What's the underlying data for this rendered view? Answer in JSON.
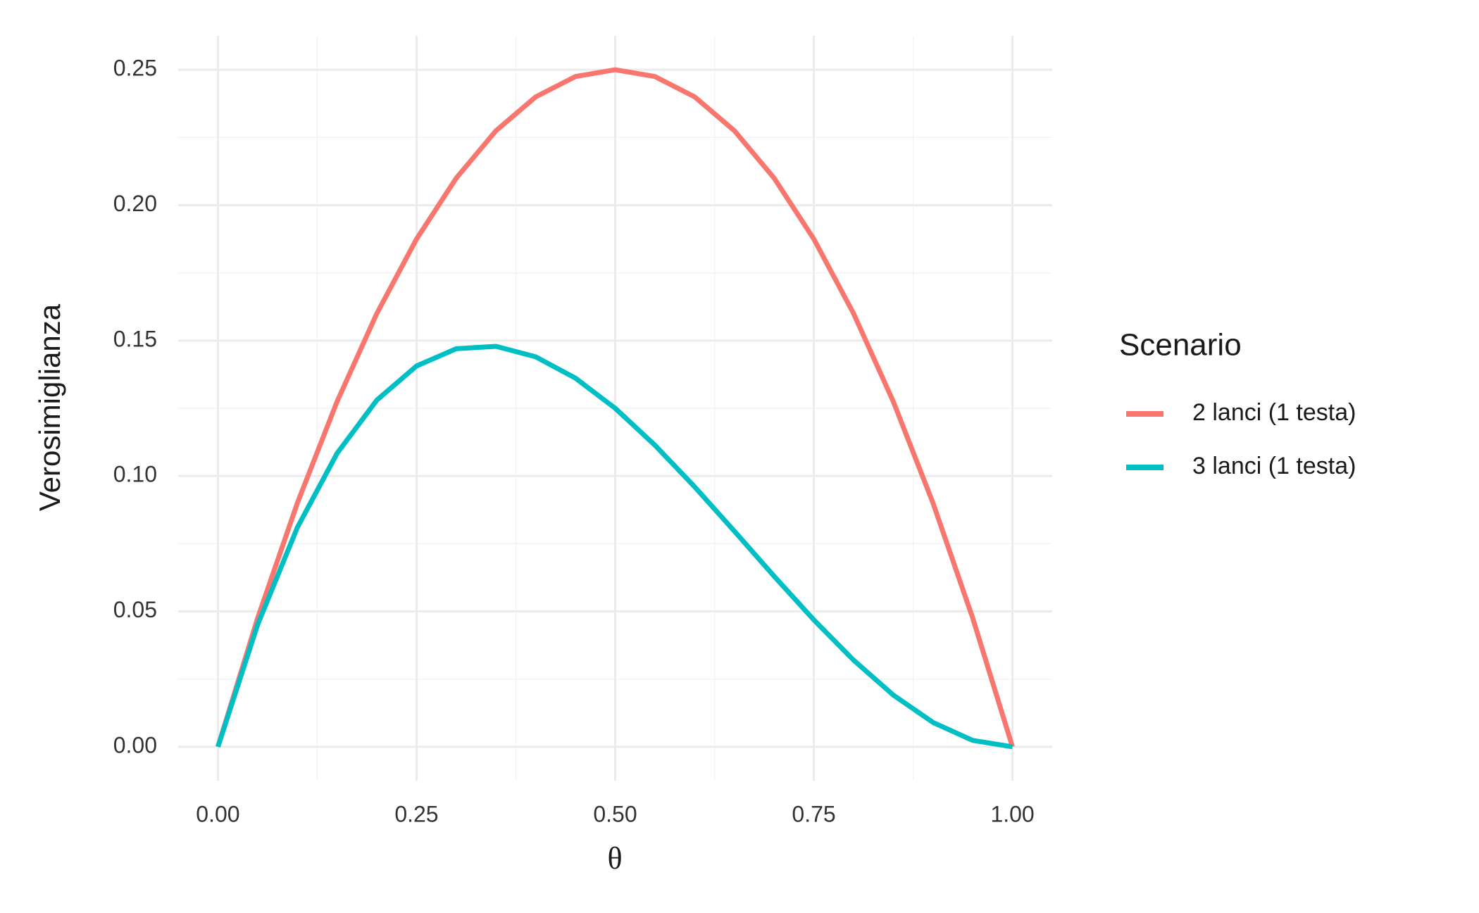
{
  "chart_data": {
    "type": "line",
    "x_label": "θ",
    "y_label": "Verosimiglianza",
    "legend_title": "Scenario",
    "legend_position": "right",
    "x": [
      0,
      0.05,
      0.1,
      0.15,
      0.2,
      0.25,
      0.3,
      0.35,
      0.4,
      0.45,
      0.5,
      0.55,
      0.6,
      0.65,
      0.7,
      0.75,
      0.8,
      0.85,
      0.9,
      0.95,
      1
    ],
    "series": [
      {
        "name": "2 lanci (1 testa)",
        "color": "#f8766d",
        "values": [
          0,
          0.0475,
          0.09,
          0.1275,
          0.16,
          0.1875,
          0.21,
          0.2275,
          0.24,
          0.2475,
          0.25,
          0.2475,
          0.24,
          0.2275,
          0.21,
          0.1875,
          0.16,
          0.1275,
          0.09,
          0.0475,
          0
        ]
      },
      {
        "name": "3 lanci (1 testa)",
        "color": "#00bfc4",
        "values": [
          0,
          0.045125,
          0.081,
          0.108375,
          0.128,
          0.140625,
          0.147,
          0.147875,
          0.144,
          0.136125,
          0.125,
          0.111375,
          0.096,
          0.079625,
          0.063,
          0.046875,
          0.032,
          0.019125,
          0.009,
          0.002375,
          0
        ]
      }
    ],
    "xlim": [
      -0.05,
      1.05
    ],
    "ylim": [
      -0.0125,
      0.2625
    ],
    "xticks": [
      {
        "value": 0,
        "label": "0.00"
      },
      0.25,
      {
        "value": 0.5,
        "label": "0.50"
      },
      0.75,
      {
        "value": 1,
        "label": "1.00"
      }
    ],
    "yticks": [
      {
        "value": 0,
        "label": "0.00"
      },
      0.05,
      {
        "value": 0.1,
        "label": "0.10"
      },
      0.15,
      {
        "value": 0.2,
        "label": "0.20"
      },
      0.25
    ],
    "grid": true,
    "minor_grid": true
  }
}
